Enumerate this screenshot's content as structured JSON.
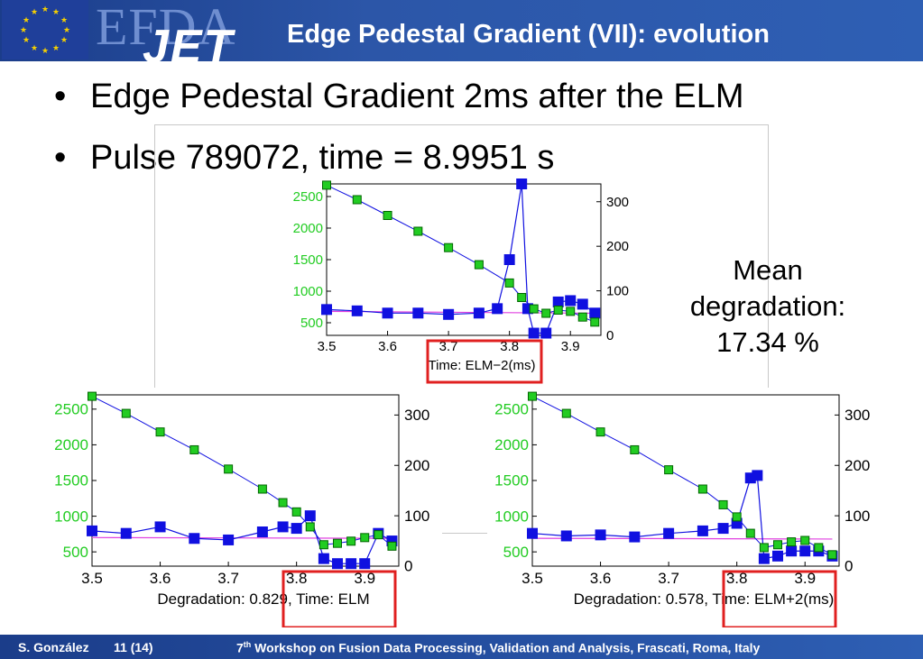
{
  "header": {
    "logo_efda": "EFDA",
    "logo_jet": "JET",
    "title": "Edge Pedestal Gradient (VII): evolution"
  },
  "bullets": [
    "Edge Pedestal Gradient 2ms after the ELM",
    "Pulse 789072, time = 8.9951 s"
  ],
  "mean": {
    "line1": "Mean",
    "line2": "degradation:",
    "line3": "17.34 %"
  },
  "colors": {
    "header": "#2c56a8",
    "green_series": "#22cc22",
    "blue_series": "#1010e0",
    "pink_line": "#e040e0",
    "highlight_box": "#e02020"
  },
  "footer": {
    "author": "S. González",
    "page": "11 (14)",
    "workshop_prefix": "7",
    "workshop_sup": "th",
    "workshop_rest": " Workshop on Fusion Data Processing, Validation and Analysis, Frascati, Roma, Italy"
  },
  "chart_data": [
    {
      "type": "line",
      "panel": "top-center",
      "xlabel": "Time:  ELM−2(ms)",
      "x_ticks": [
        "3.5",
        "3.6",
        "3.7",
        "3.8",
        "3.9"
      ],
      "left_ticks": [
        "500",
        "1000",
        "1500",
        "2000",
        "2500"
      ],
      "right_ticks": [
        "0",
        "100",
        "200",
        "300"
      ],
      "xlim": [
        3.5,
        3.95
      ],
      "ylim_left": [
        300,
        2700
      ],
      "ylim_right": [
        0,
        340
      ],
      "highlight": "ELM−2(ms)",
      "series": [
        {
          "axis": "left",
          "x": [
            3.5,
            3.55,
            3.6,
            3.65,
            3.7,
            3.75,
            3.8,
            3.82,
            3.84,
            3.86,
            3.88,
            3.9,
            3.92,
            3.94
          ],
          "values": [
            2680,
            2450,
            2200,
            1950,
            1690,
            1420,
            1130,
            900,
            720,
            650,
            700,
            680,
            590,
            510
          ]
        },
        {
          "axis": "right",
          "x": [
            3.5,
            3.55,
            3.6,
            3.65,
            3.7,
            3.75,
            3.78,
            3.8,
            3.82,
            3.83,
            3.84,
            3.86,
            3.88,
            3.9,
            3.92,
            3.94
          ],
          "values": [
            58,
            55,
            50,
            50,
            47,
            50,
            60,
            170,
            340,
            60,
            5,
            5,
            75,
            78,
            70,
            50
          ]
        },
        {
          "axis": "left",
          "x": [
            3.5,
            3.94
          ],
          "values": [
            680,
            650
          ]
        }
      ]
    },
    {
      "type": "line",
      "panel": "bottom-left",
      "xlabel": "Degradation: 0.829, Time: ELM",
      "x_ticks": [
        "3.5",
        "3.6",
        "3.7",
        "3.8",
        "3.9"
      ],
      "left_ticks": [
        "500",
        "1000",
        "1500",
        "2000",
        "2500"
      ],
      "right_ticks": [
        "0",
        "100",
        "200",
        "300"
      ],
      "xlim": [
        3.5,
        3.95
      ],
      "ylim_left": [
        300,
        2700
      ],
      "ylim_right": [
        0,
        340
      ],
      "highlight": "Time: ELM",
      "series": [
        {
          "axis": "left",
          "x": [
            3.5,
            3.55,
            3.6,
            3.65,
            3.7,
            3.75,
            3.78,
            3.8,
            3.82,
            3.84,
            3.86,
            3.88,
            3.9,
            3.92,
            3.94
          ],
          "values": [
            2680,
            2440,
            2180,
            1930,
            1660,
            1380,
            1190,
            1060,
            850,
            600,
            620,
            650,
            700,
            740,
            580
          ]
        },
        {
          "axis": "right",
          "x": [
            3.5,
            3.55,
            3.6,
            3.65,
            3.7,
            3.75,
            3.78,
            3.8,
            3.82,
            3.84,
            3.86,
            3.88,
            3.9,
            3.92,
            3.94
          ],
          "values": [
            70,
            65,
            78,
            55,
            52,
            68,
            78,
            75,
            100,
            15,
            5,
            5,
            5,
            65,
            50
          ]
        },
        {
          "axis": "left",
          "x": [
            3.5,
            3.94
          ],
          "values": [
            700,
            690
          ]
        }
      ]
    },
    {
      "type": "line",
      "panel": "bottom-right",
      "xlabel": "Degradation: 0.578, Time:  ELM+2(ms)",
      "x_ticks": [
        "3.5",
        "3.6",
        "3.7",
        "3.8",
        "3.9"
      ],
      "left_ticks": [
        "500",
        "1000",
        "1500",
        "2000",
        "2500"
      ],
      "right_ticks": [
        "0",
        "100",
        "200",
        "300"
      ],
      "xlim": [
        3.5,
        3.95
      ],
      "ylim_left": [
        300,
        2700
      ],
      "ylim_right": [
        0,
        340
      ],
      "highlight": "ELM+2(ms)",
      "series": [
        {
          "axis": "left",
          "x": [
            3.5,
            3.55,
            3.6,
            3.65,
            3.7,
            3.75,
            3.78,
            3.8,
            3.82,
            3.84,
            3.86,
            3.88,
            3.9,
            3.92,
            3.94
          ],
          "values": [
            2680,
            2440,
            2180,
            1930,
            1650,
            1380,
            1160,
            990,
            760,
            560,
            600,
            640,
            660,
            560,
            460
          ]
        },
        {
          "axis": "right",
          "x": [
            3.5,
            3.55,
            3.6,
            3.65,
            3.7,
            3.75,
            3.78,
            3.8,
            3.82,
            3.83,
            3.84,
            3.86,
            3.88,
            3.9,
            3.92,
            3.94
          ],
          "values": [
            65,
            60,
            62,
            58,
            65,
            70,
            75,
            85,
            175,
            180,
            15,
            20,
            30,
            30,
            30,
            20
          ]
        },
        {
          "axis": "left",
          "x": [
            3.5,
            3.94
          ],
          "values": [
            690,
            680
          ]
        }
      ]
    }
  ]
}
